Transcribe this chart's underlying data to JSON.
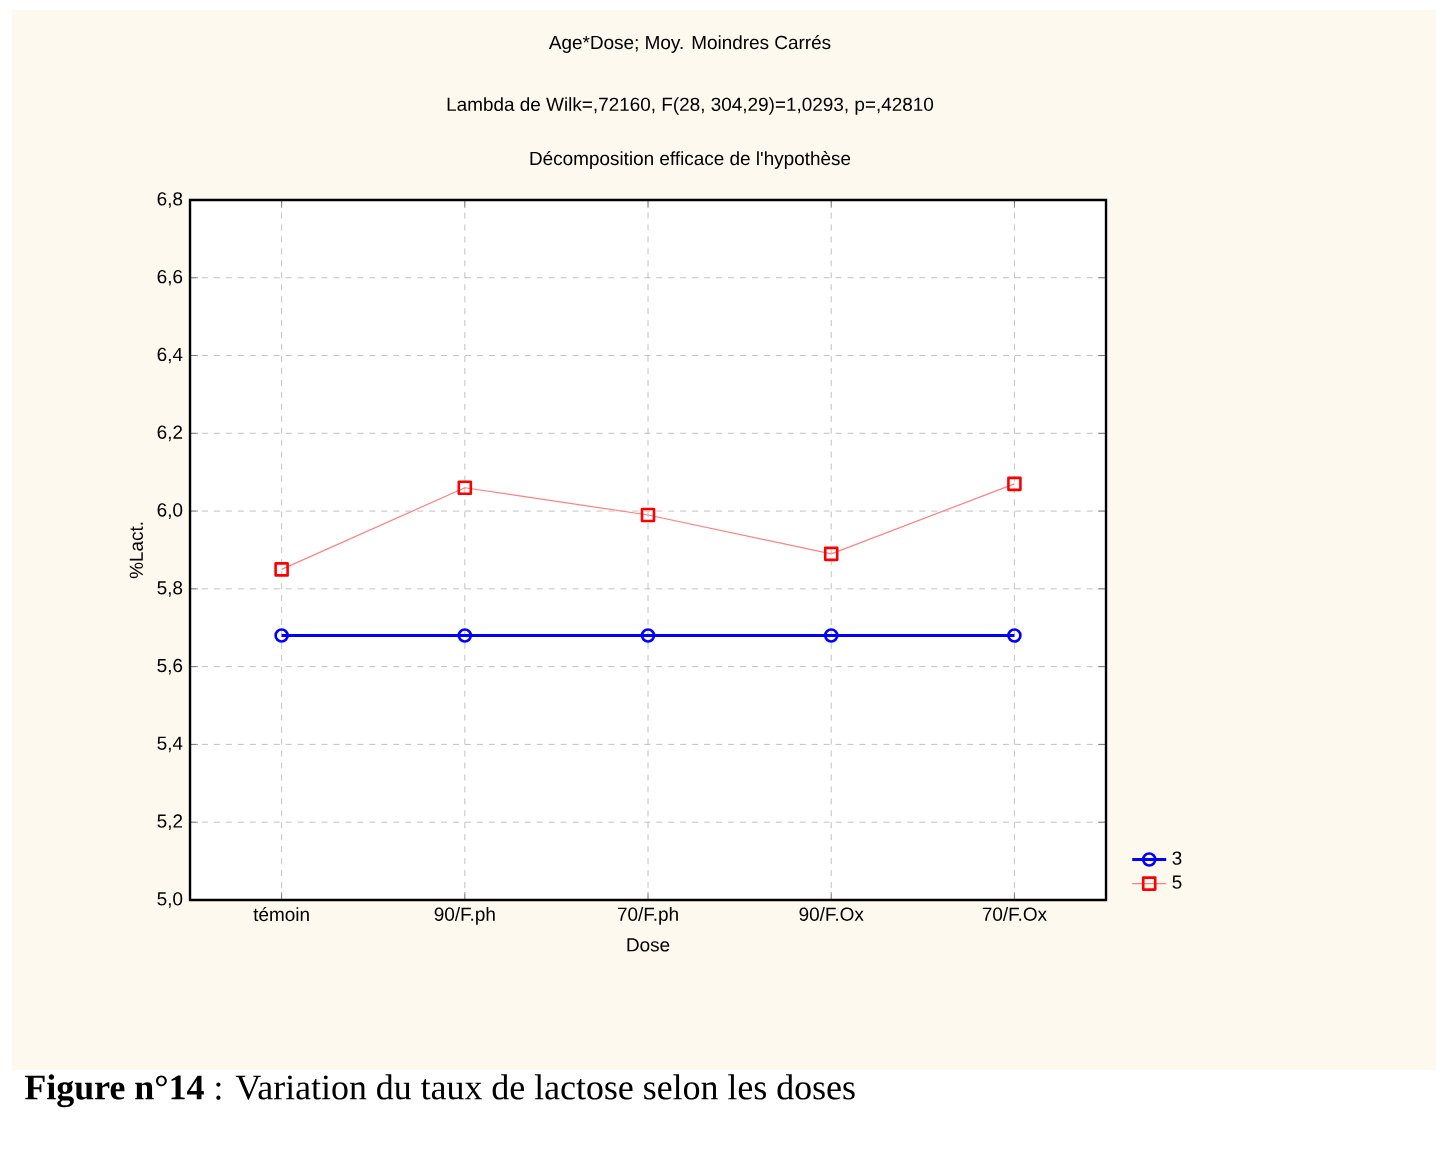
{
  "chart_data": {
    "type": "line",
    "title": "Age*Dose; Moy. Moindres Carrés",
    "subtitle": "Lambda de Wilk=,72160, F(28, 304,29)=1,0293, p=,42810",
    "annotations": [
      "Décomposition efficace de l'hypothèse",
      "**Figure n°14** : Variation  du taux de lactose  selon les doses"
    ],
    "xlabel": "Dose",
    "ylabel": "%Lact.",
    "categories": [
      "témoin",
      "90/F.ph",
      "70/F.ph",
      "90/F.Ox",
      "70/F.Ox"
    ],
    "series": [
      {
        "name": "3",
        "color": "#0000ff",
        "marker": "circle",
        "values": [
          5.68,
          5.68,
          5.68,
          5.68,
          5.68
        ]
      },
      {
        "name": "5",
        "color": "#ff0000",
        "marker": "square",
        "values": [
          5.85,
          6.06,
          5.99,
          5.89,
          6.07
        ]
      }
    ],
    "ylim": [
      5.0,
      6.8
    ],
    "yticks": [
      {
        "value": 5.0,
        "label": "5,0"
      },
      {
        "value": 5.2,
        "label": "5,2"
      },
      {
        "value": 5.4,
        "label": "5,4"
      },
      {
        "value": 5.6,
        "label": "5,6"
      },
      {
        "value": 5.8,
        "label": "5,8"
      },
      {
        "value": 6.0,
        "label": "6,0"
      },
      {
        "value": 6.2,
        "label": "6,2"
      },
      {
        "value": 6.4,
        "label": "6,4"
      },
      {
        "value": 6.6,
        "label": "6,6"
      },
      {
        "value": 6.8,
        "label": "6,8"
      }
    ],
    "grid": true,
    "legend": "bottom right",
    "line_style": "solid"
  }
}
